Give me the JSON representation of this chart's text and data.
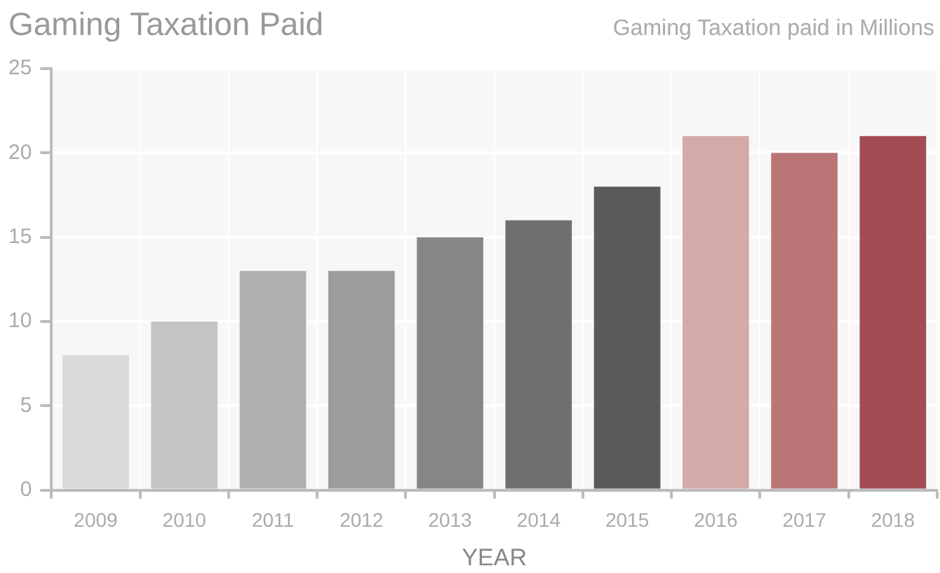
{
  "chart_data": {
    "type": "bar",
    "title": "Gaming Taxation Paid",
    "subtitle": "Gaming Taxation paid in Millions",
    "xlabel": "YEAR",
    "categories": [
      "2009",
      "2010",
      "2011",
      "2012",
      "2013",
      "2014",
      "2015",
      "2016",
      "2017",
      "2018"
    ],
    "values": [
      8,
      10,
      13,
      13,
      15,
      16,
      18,
      21,
      20,
      21
    ],
    "colors": [
      "#d9d9d9",
      "#c4c4c4",
      "#b0b0b0",
      "#9c9c9b",
      "#868686",
      "#6f6f6f",
      "#5b5a5a",
      "#d4aaa9",
      "#ba7677",
      "#a24d53"
    ],
    "ylim": [
      0,
      25
    ],
    "yticks": [
      0,
      5,
      10,
      15,
      20,
      25
    ],
    "grid": true,
    "legend": false
  }
}
